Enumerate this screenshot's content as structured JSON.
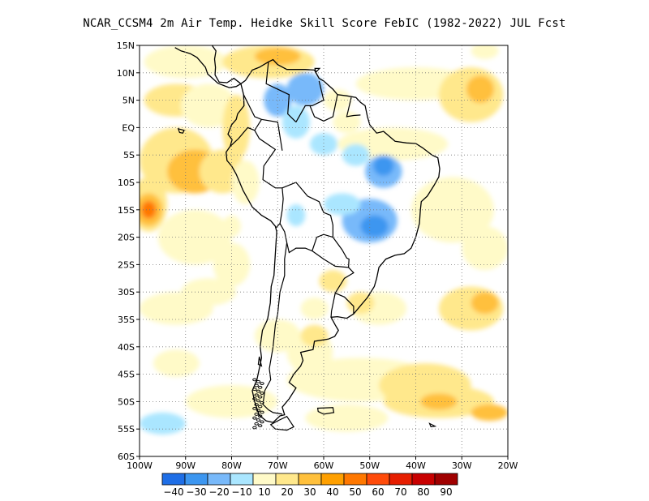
{
  "title": "NCAR_CCSM4  2m Air Temp. Heidke Skill Score FebIC (1982-2022) JUL Fcst",
  "map": {
    "lon_range": [
      -100,
      -20
    ],
    "lat_range": [
      -60,
      15
    ],
    "lat_ticks": [
      {
        "value": 15,
        "label": "15N"
      },
      {
        "value": 10,
        "label": "10N"
      },
      {
        "value": 5,
        "label": "5N"
      },
      {
        "value": 0,
        "label": "EQ"
      },
      {
        "value": -5,
        "label": "5S"
      },
      {
        "value": -10,
        "label": "10S"
      },
      {
        "value": -15,
        "label": "15S"
      },
      {
        "value": -20,
        "label": "20S"
      },
      {
        "value": -25,
        "label": "25S"
      },
      {
        "value": -30,
        "label": "30S"
      },
      {
        "value": -35,
        "label": "35S"
      },
      {
        "value": -40,
        "label": "40S"
      },
      {
        "value": -45,
        "label": "45S"
      },
      {
        "value": -50,
        "label": "50S"
      },
      {
        "value": -55,
        "label": "55S"
      },
      {
        "value": -60,
        "label": "60S"
      }
    ],
    "lon_ticks": [
      {
        "value": -100,
        "label": "100W"
      },
      {
        "value": -90,
        "label": "90W"
      },
      {
        "value": -80,
        "label": "80W"
      },
      {
        "value": -70,
        "label": "70W"
      },
      {
        "value": -60,
        "label": "60W"
      },
      {
        "value": -50,
        "label": "50W"
      },
      {
        "value": -40,
        "label": "40W"
      },
      {
        "value": -30,
        "label": "30W"
      },
      {
        "value": -20,
        "label": "20W"
      }
    ],
    "grid": "dotted",
    "skill_patches": [
      {
        "lon": -90,
        "lat": 12,
        "rx": 9,
        "ry": 3,
        "level": 10
      },
      {
        "lon": -72,
        "lat": 12,
        "rx": 10,
        "ry": 3,
        "level": 20
      },
      {
        "lon": -70,
        "lat": 13,
        "rx": 5,
        "ry": 1.6,
        "level": 30
      },
      {
        "lon": -92,
        "lat": 5,
        "rx": 7,
        "ry": 3,
        "level": 20
      },
      {
        "lon": -85,
        "lat": 4,
        "rx": 6,
        "ry": 4,
        "level": 10
      },
      {
        "lon": -40,
        "lat": 8,
        "rx": 13,
        "ry": 3,
        "level": 10
      },
      {
        "lon": -28,
        "lat": 6,
        "rx": 7,
        "ry": 5,
        "level": 20
      },
      {
        "lon": -26,
        "lat": 7,
        "rx": 3,
        "ry": 2.5,
        "level": 30
      },
      {
        "lon": -92,
        "lat": -6,
        "rx": 8,
        "ry": 6,
        "level": 20
      },
      {
        "lon": -88,
        "lat": -8,
        "rx": 6,
        "ry": 4,
        "level": 30
      },
      {
        "lon": -82,
        "lat": -8,
        "rx": 5,
        "ry": 4,
        "level": 20
      },
      {
        "lon": -98,
        "lat": -14,
        "rx": 4,
        "ry": 5,
        "level": 20
      },
      {
        "lon": -98,
        "lat": -15,
        "rx": 3,
        "ry": 3,
        "level": 30
      },
      {
        "lon": -98,
        "lat": -15,
        "rx": 1.6,
        "ry": 1.6,
        "level": 50
      },
      {
        "lon": -88,
        "lat": -20,
        "rx": 8,
        "ry": 5,
        "level": 10
      },
      {
        "lon": -80,
        "lat": -25,
        "rx": 4,
        "ry": 4,
        "level": 10
      },
      {
        "lon": -32,
        "lat": -15,
        "rx": 9,
        "ry": 6,
        "level": 10
      },
      {
        "lon": -25,
        "lat": -22,
        "rx": 5,
        "ry": 4,
        "level": 10
      },
      {
        "lon": -45,
        "lat": -3,
        "rx": 12,
        "ry": 3,
        "level": 10
      },
      {
        "lon": -28,
        "lat": -33,
        "rx": 7,
        "ry": 4,
        "level": 20
      },
      {
        "lon": -25,
        "lat": -32,
        "rx": 3,
        "ry": 2,
        "level": 30
      },
      {
        "lon": -92,
        "lat": -33,
        "rx": 8,
        "ry": 3,
        "level": 10
      },
      {
        "lon": -85,
        "lat": -30,
        "rx": 6,
        "ry": 2.5,
        "level": 10
      },
      {
        "lon": -48,
        "lat": -33,
        "rx": 6,
        "ry": 3,
        "level": 10
      },
      {
        "lon": -52,
        "lat": -46,
        "rx": 16,
        "ry": 4,
        "level": 10
      },
      {
        "lon": -38,
        "lat": -47,
        "rx": 10,
        "ry": 4,
        "level": 20
      },
      {
        "lon": -35,
        "lat": -50,
        "rx": 12,
        "ry": 3,
        "level": 20
      },
      {
        "lon": -35,
        "lat": -50,
        "rx": 4,
        "ry": 1.5,
        "level": 30
      },
      {
        "lon": -24,
        "lat": -52,
        "rx": 4,
        "ry": 1.5,
        "level": 30
      },
      {
        "lon": -55,
        "lat": -53,
        "rx": 9,
        "ry": 2.5,
        "level": 10
      },
      {
        "lon": -80,
        "lat": -50,
        "rx": 10,
        "ry": 3,
        "level": 10
      },
      {
        "lon": -92,
        "lat": -43,
        "rx": 5,
        "ry": 2.5,
        "level": 10
      },
      {
        "lon": -70,
        "lat": -38,
        "rx": 5,
        "ry": 3,
        "level": 10
      },
      {
        "lon": -63,
        "lat": -41,
        "rx": 5,
        "ry": 4,
        "level": 10
      },
      {
        "lon": -62,
        "lat": -38,
        "rx": 3,
        "ry": 2,
        "level": 20
      },
      {
        "lon": -58,
        "lat": -28,
        "rx": 3,
        "ry": 2,
        "level": 20
      },
      {
        "lon": -62,
        "lat": -33,
        "rx": 3,
        "ry": 2,
        "level": 10
      },
      {
        "lon": -52,
        "lat": -32,
        "rx": 3,
        "ry": 2,
        "level": 20
      },
      {
        "lon": -79,
        "lat": 0,
        "rx": 3,
        "ry": 6,
        "level": 20
      },
      {
        "lon": -77,
        "lat": -10,
        "rx": 3,
        "ry": 4,
        "level": 10
      },
      {
        "lon": -64,
        "lat": 7,
        "rx": 4,
        "ry": 3,
        "level": -20
      },
      {
        "lon": -70,
        "lat": 5,
        "rx": 3,
        "ry": 3,
        "level": -20
      },
      {
        "lon": -66,
        "lat": 1,
        "rx": 3,
        "ry": 3,
        "level": -10
      },
      {
        "lon": -60,
        "lat": -3,
        "rx": 3,
        "ry": 2,
        "level": -10
      },
      {
        "lon": -53,
        "lat": -5,
        "rx": 3,
        "ry": 2,
        "level": -10
      },
      {
        "lon": -47,
        "lat": -8,
        "rx": 4,
        "ry": 3,
        "level": -20
      },
      {
        "lon": -47,
        "lat": -7,
        "rx": 2.2,
        "ry": 1.8,
        "level": -30
      },
      {
        "lon": -50,
        "lat": -17,
        "rx": 6,
        "ry": 4,
        "level": -20
      },
      {
        "lon": -49,
        "lat": -18,
        "rx": 3,
        "ry": 2,
        "level": -30
      },
      {
        "lon": -56,
        "lat": -14,
        "rx": 4,
        "ry": 2,
        "level": -10
      },
      {
        "lon": -66,
        "lat": -16,
        "rx": 2,
        "ry": 2,
        "level": -10
      },
      {
        "lon": -57,
        "lat": 5,
        "rx": 3,
        "ry": 2,
        "level": 10
      },
      {
        "lon": -55,
        "lat": 1,
        "rx": 3,
        "ry": 2,
        "level": 10
      },
      {
        "lon": -95,
        "lat": -54,
        "rx": 5,
        "ry": 2,
        "level": -10
      },
      {
        "lon": -80,
        "lat": -18,
        "rx": 2,
        "ry": 2,
        "level": 10
      },
      {
        "lon": -25,
        "lat": 14,
        "rx": 3,
        "ry": 1.5,
        "level": 10
      }
    ]
  },
  "colorbar": {
    "levels": [
      -40,
      -30,
      -20,
      -10,
      10,
      20,
      30,
      40,
      50,
      60,
      70,
      80,
      90
    ],
    "labels": [
      "-40",
      "-30",
      "-20",
      "-10",
      "10",
      "20",
      "30",
      "40",
      "50",
      "60",
      "70",
      "80",
      "90"
    ],
    "colors": [
      "#1e6ee6",
      "#3c96f0",
      "#78b9fa",
      "#aae6ff",
      "#fffac8",
      "#ffe88c",
      "#ffc03c",
      "#ffa000",
      "#ff7800",
      "#ff4b0a",
      "#e61e00",
      "#c80000",
      "#a00000"
    ]
  }
}
